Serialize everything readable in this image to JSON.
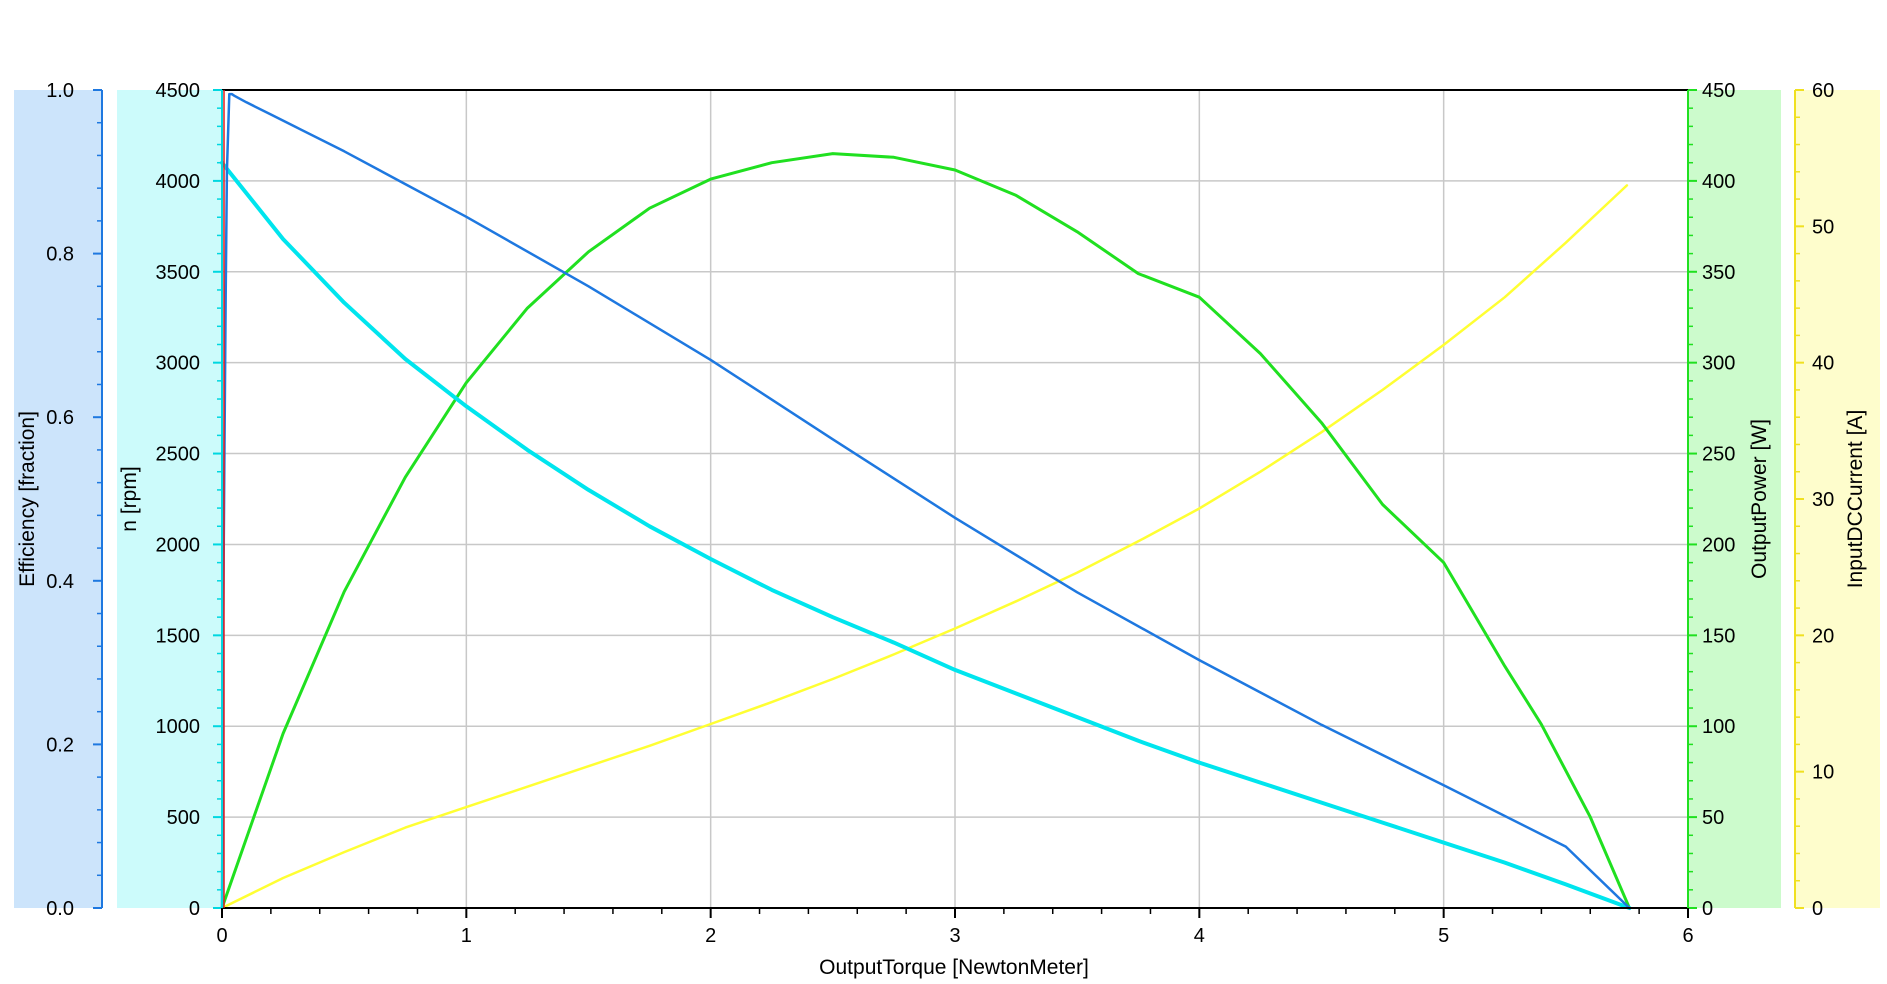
{
  "chart_data": {
    "type": "line",
    "grid": true,
    "x_axis": {
      "label": "OutputTorque [NewtonMeter]",
      "range": [
        0,
        6
      ],
      "ticks": [
        "0",
        "1",
        "2",
        "3",
        "4",
        "5",
        "6"
      ]
    },
    "y_axes": [
      {
        "id": "efficiency",
        "label": "Efficiency [fraction]",
        "side": "left",
        "background_color": "#cce4fb",
        "range": [
          0,
          1
        ],
        "ticks": [
          "0.0",
          "0.2",
          "0.4",
          "0.6",
          "0.8",
          "1.0"
        ]
      },
      {
        "id": "speed",
        "label": "n [rpm]",
        "side": "left",
        "background_color": "#ccfbfb",
        "range": [
          0,
          4500
        ],
        "ticks": [
          "0",
          "500",
          "1000",
          "1500",
          "2000",
          "2500",
          "3000",
          "3500",
          "4000",
          "4500"
        ]
      },
      {
        "id": "power",
        "label": "OutputPower [W]",
        "side": "right",
        "background_color": "#ccfbcc",
        "range": [
          0,
          450
        ],
        "ticks": [
          "0",
          "50",
          "100",
          "150",
          "200",
          "250",
          "300",
          "350",
          "400",
          "450"
        ]
      },
      {
        "id": "current",
        "label": "InputDCCurrent [A]",
        "side": "right",
        "background_color": "#fefdcc",
        "range": [
          0,
          60
        ],
        "ticks": [
          "0",
          "10",
          "20",
          "30",
          "40",
          "50",
          "60"
        ]
      }
    ],
    "series": [
      {
        "axis": "efficiency",
        "color": "#1e78e0",
        "line_width": 2.5,
        "x": [
          0.0,
          0.002,
          0.005,
          0.01,
          0.015,
          0.02,
          0.03,
          0.04,
          0.05,
          0.1,
          0.2,
          0.3,
          0.5,
          0.75,
          1.0,
          1.5,
          2.0,
          2.5,
          3.0,
          3.5,
          4.0,
          4.5,
          5.0,
          5.5,
          5.76
        ],
        "y": [
          0.0,
          0.15,
          0.35,
          0.55,
          0.75,
          0.9,
          0.995,
          0.995,
          0.993,
          0.985,
          0.97,
          0.955,
          0.925,
          0.885,
          0.845,
          0.76,
          0.67,
          0.573,
          0.477,
          0.386,
          0.303,
          0.224,
          0.15,
          0.075,
          0.0
        ]
      },
      {
        "axis": "speed",
        "color": "#00e5ee",
        "line_width": 4,
        "x": [
          0.0,
          0.25,
          0.5,
          0.75,
          1.0,
          1.25,
          1.5,
          1.75,
          2.0,
          2.25,
          2.5,
          2.75,
          3.0,
          3.25,
          3.5,
          3.75,
          4.0,
          4.25,
          4.5,
          4.75,
          5.0,
          5.25,
          5.5,
          5.76
        ],
        "y": [
          4100,
          3680,
          3330,
          3020,
          2760,
          2520,
          2300,
          2100,
          1920,
          1750,
          1600,
          1460,
          1310,
          1180,
          1050,
          920,
          800,
          690,
          580,
          470,
          360,
          250,
          130,
          0
        ]
      },
      {
        "axis": "power",
        "color": "#20e020",
        "line_width": 3,
        "x": [
          0.0,
          0.25,
          0.5,
          0.75,
          1.0,
          1.25,
          1.5,
          1.75,
          2.0,
          2.25,
          2.5,
          2.75,
          3.0,
          3.25,
          3.5,
          3.75,
          4.0,
          4.25,
          4.5,
          4.75,
          5.0,
          5.25,
          5.4,
          5.6,
          5.76
        ],
        "y": [
          0,
          96,
          174,
          237,
          289,
          330,
          361,
          385,
          401,
          410,
          415,
          413,
          406,
          392,
          372,
          349,
          336,
          305,
          267,
          222,
          190,
          133,
          101,
          50,
          0
        ]
      },
      {
        "axis": "current",
        "color": "#ffff33",
        "line_width": 2.5,
        "x": [
          0.0,
          0.25,
          0.5,
          0.75,
          1.0,
          1.25,
          1.5,
          1.75,
          2.0,
          2.25,
          2.5,
          2.75,
          3.0,
          3.25,
          3.5,
          3.75,
          4.0,
          4.25,
          4.5,
          4.75,
          5.0,
          5.25,
          5.5,
          5.75
        ],
        "y": [
          0.0,
          2.2,
          4.1,
          5.9,
          7.4,
          8.9,
          10.4,
          11.9,
          13.5,
          15.1,
          16.8,
          18.6,
          20.5,
          22.5,
          24.6,
          26.9,
          29.3,
          32.0,
          34.9,
          38.0,
          41.3,
          44.8,
          48.8,
          53.0
        ]
      }
    ]
  }
}
